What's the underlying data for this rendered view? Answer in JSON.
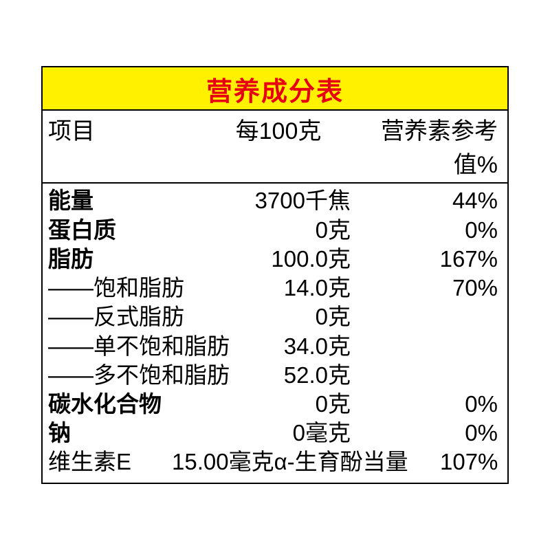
{
  "table": {
    "title": "营养成分表",
    "title_color": "#e60012",
    "title_bg": "#fff100",
    "border_color": "#000000",
    "background_color": "#ffffff",
    "header": {
      "item": "项目",
      "per": "每100克",
      "nrv": "营养素参考值%"
    },
    "rows": [
      {
        "label": "能量",
        "value": "3700千焦",
        "nrv": "44%",
        "bold": true,
        "sub": false
      },
      {
        "label": "蛋白质",
        "value": "0克",
        "nrv": "0%",
        "bold": true,
        "sub": false
      },
      {
        "label": "脂肪",
        "value": "100.0克",
        "nrv": "167%",
        "bold": true,
        "sub": false
      },
      {
        "label": "——饱和脂肪",
        "value": "14.0克",
        "nrv": "70%",
        "bold": false,
        "sub": true
      },
      {
        "label": "——反式脂肪",
        "value": "0克",
        "nrv": "",
        "bold": false,
        "sub": true
      },
      {
        "label": "——单不饱和脂肪",
        "value": "34.0克",
        "nrv": "",
        "bold": false,
        "sub": true
      },
      {
        "label": "——多不饱和脂肪",
        "value": "52.0克",
        "nrv": "",
        "bold": false,
        "sub": true
      },
      {
        "label": "碳水化合物",
        "value": "0克",
        "nrv": "0%",
        "bold": true,
        "sub": false
      },
      {
        "label": "钠",
        "value": "0毫克",
        "nrv": "0%",
        "bold": true,
        "sub": false
      }
    ],
    "vite_row": {
      "label": "维生素E",
      "value": "15.00毫克α-生育酚当量",
      "nrv": "107%"
    },
    "font_sizes": {
      "title": 38,
      "header": 34,
      "body": 33
    }
  }
}
